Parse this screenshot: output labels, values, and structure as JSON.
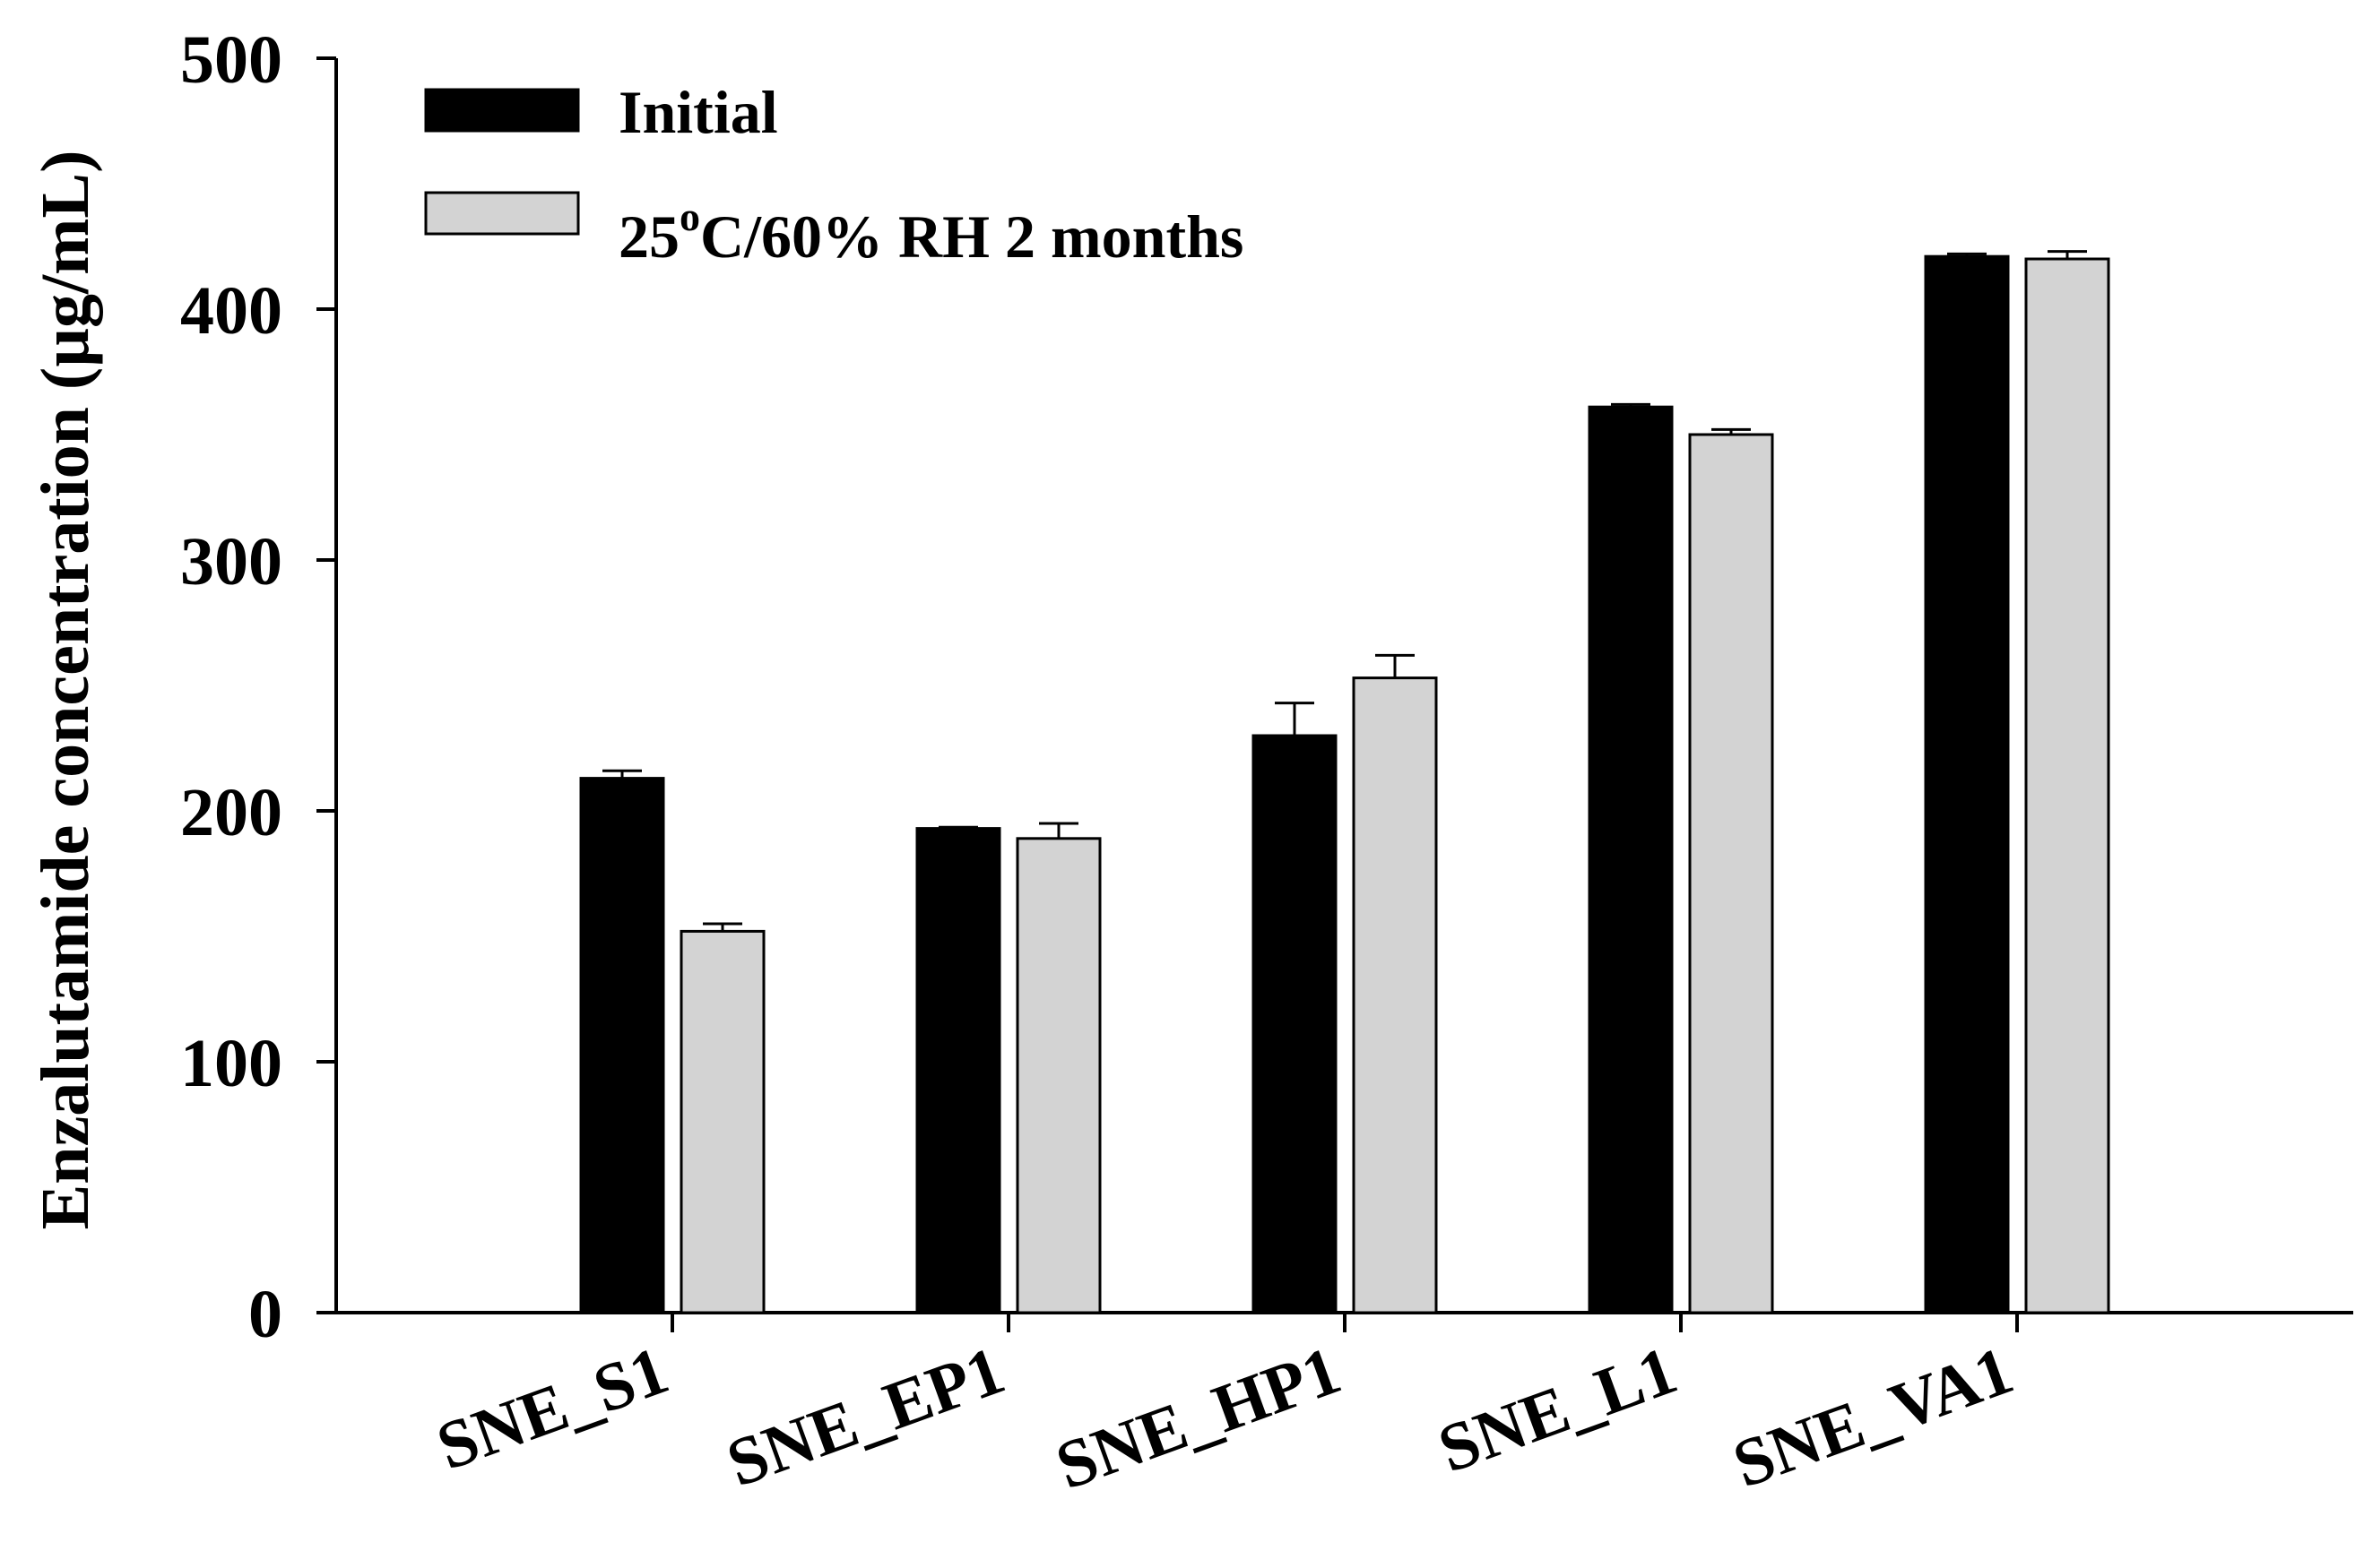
{
  "chart_data": {
    "type": "bar",
    "title": "",
    "xlabel": "",
    "ylabel": "Enzalutamide concentration (µg/mL)",
    "ylim": [
      0,
      500
    ],
    "yticks": [
      0,
      100,
      200,
      300,
      400,
      500
    ],
    "categories": [
      "SNE_S1",
      "SNE_EP1",
      "SNE_HP1",
      "SNE_L1",
      "SNE_VA1"
    ],
    "series": [
      {
        "name": "Initial",
        "color": "#000000",
        "values": [
          213,
          193,
          230,
          361,
          421
        ],
        "errors": [
          3,
          0.5,
          13,
          1,
          1
        ]
      },
      {
        "name": "25oC/60% RH 2 months",
        "color": "#d3d3d3",
        "values": [
          152,
          189,
          253,
          350,
          420
        ],
        "errors": [
          3,
          6,
          9,
          2,
          3
        ]
      }
    ],
    "legend": {
      "position": "top-left",
      "entries": [
        {
          "text": "Initial"
        },
        {
          "base": "25",
          "sup": "o",
          "rest": "C/60% RH 2 months"
        }
      ]
    }
  }
}
